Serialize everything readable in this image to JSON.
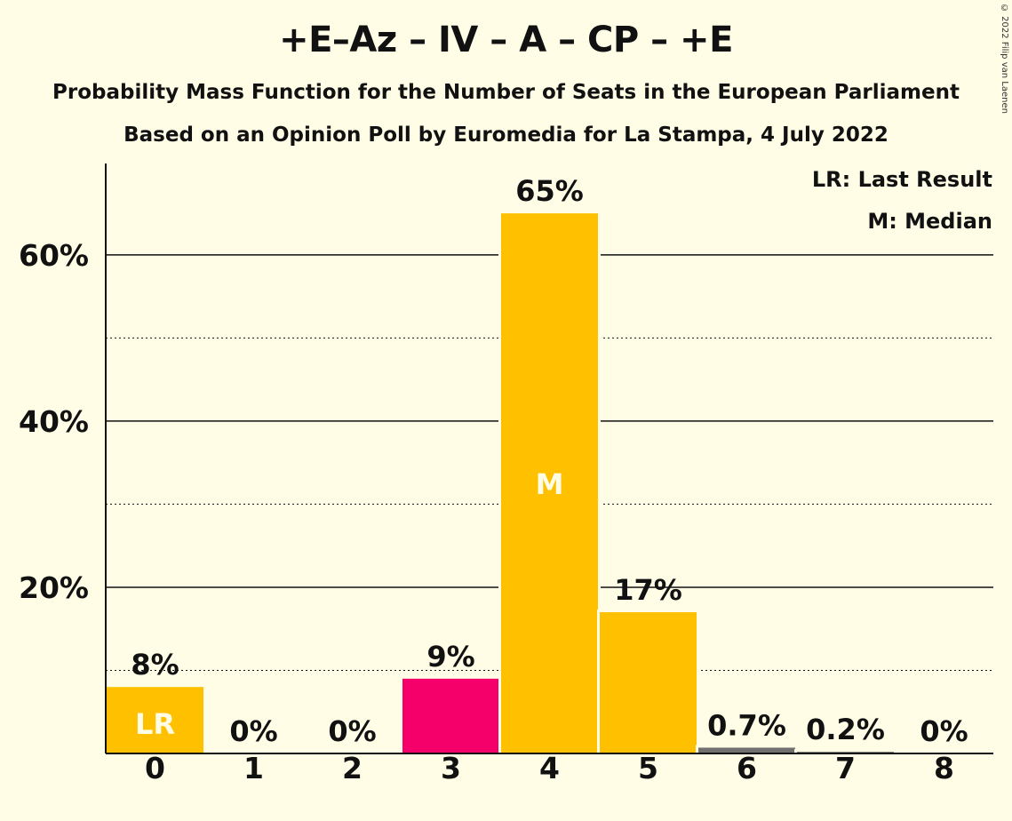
{
  "header": {
    "title": "+E–Az – IV – A – CP – +E",
    "subtitle1": "Probability Mass Function for the Number of Seats in the European Parliament",
    "subtitle2": "Based on an Opinion Poll by Euromedia for La Stampa, 4 July 2022",
    "copyright": "© 2022 Filip van Laenen"
  },
  "legend": {
    "last_result": "LR: Last Result",
    "median": "M: Median",
    "placement": "top-right"
  },
  "colors": {
    "background": "#fffde6",
    "bar_default": "#ffc000",
    "bar_highlight": "#f5006a",
    "bar_tail": "#707070",
    "axis": "#111111"
  },
  "chart_data": {
    "type": "bar",
    "categories": [
      "0",
      "1",
      "2",
      "3",
      "4",
      "5",
      "6",
      "7",
      "8"
    ],
    "values": [
      8,
      0,
      0,
      9,
      65,
      17,
      0.7,
      0.2,
      0
    ],
    "data_labels": [
      "8%",
      "0%",
      "0%",
      "9%",
      "65%",
      "17%",
      "0.7%",
      "0.2%",
      "0%"
    ],
    "bar_colors": [
      "#ffc000",
      "#ffc000",
      "#ffc000",
      "#f5006a",
      "#ffc000",
      "#ffc000",
      "#707070",
      "#707070",
      "#707070"
    ],
    "inner_labels": [
      "LR",
      "",
      "",
      "",
      "M",
      "",
      "",
      "",
      ""
    ],
    "ylim": [
      0,
      71
    ],
    "y_ticks": [
      20,
      40,
      60
    ],
    "y_tick_labels": [
      "20%",
      "40%",
      "60%"
    ],
    "minor_gridlines": [
      10,
      30,
      50
    ],
    "grid": true
  }
}
